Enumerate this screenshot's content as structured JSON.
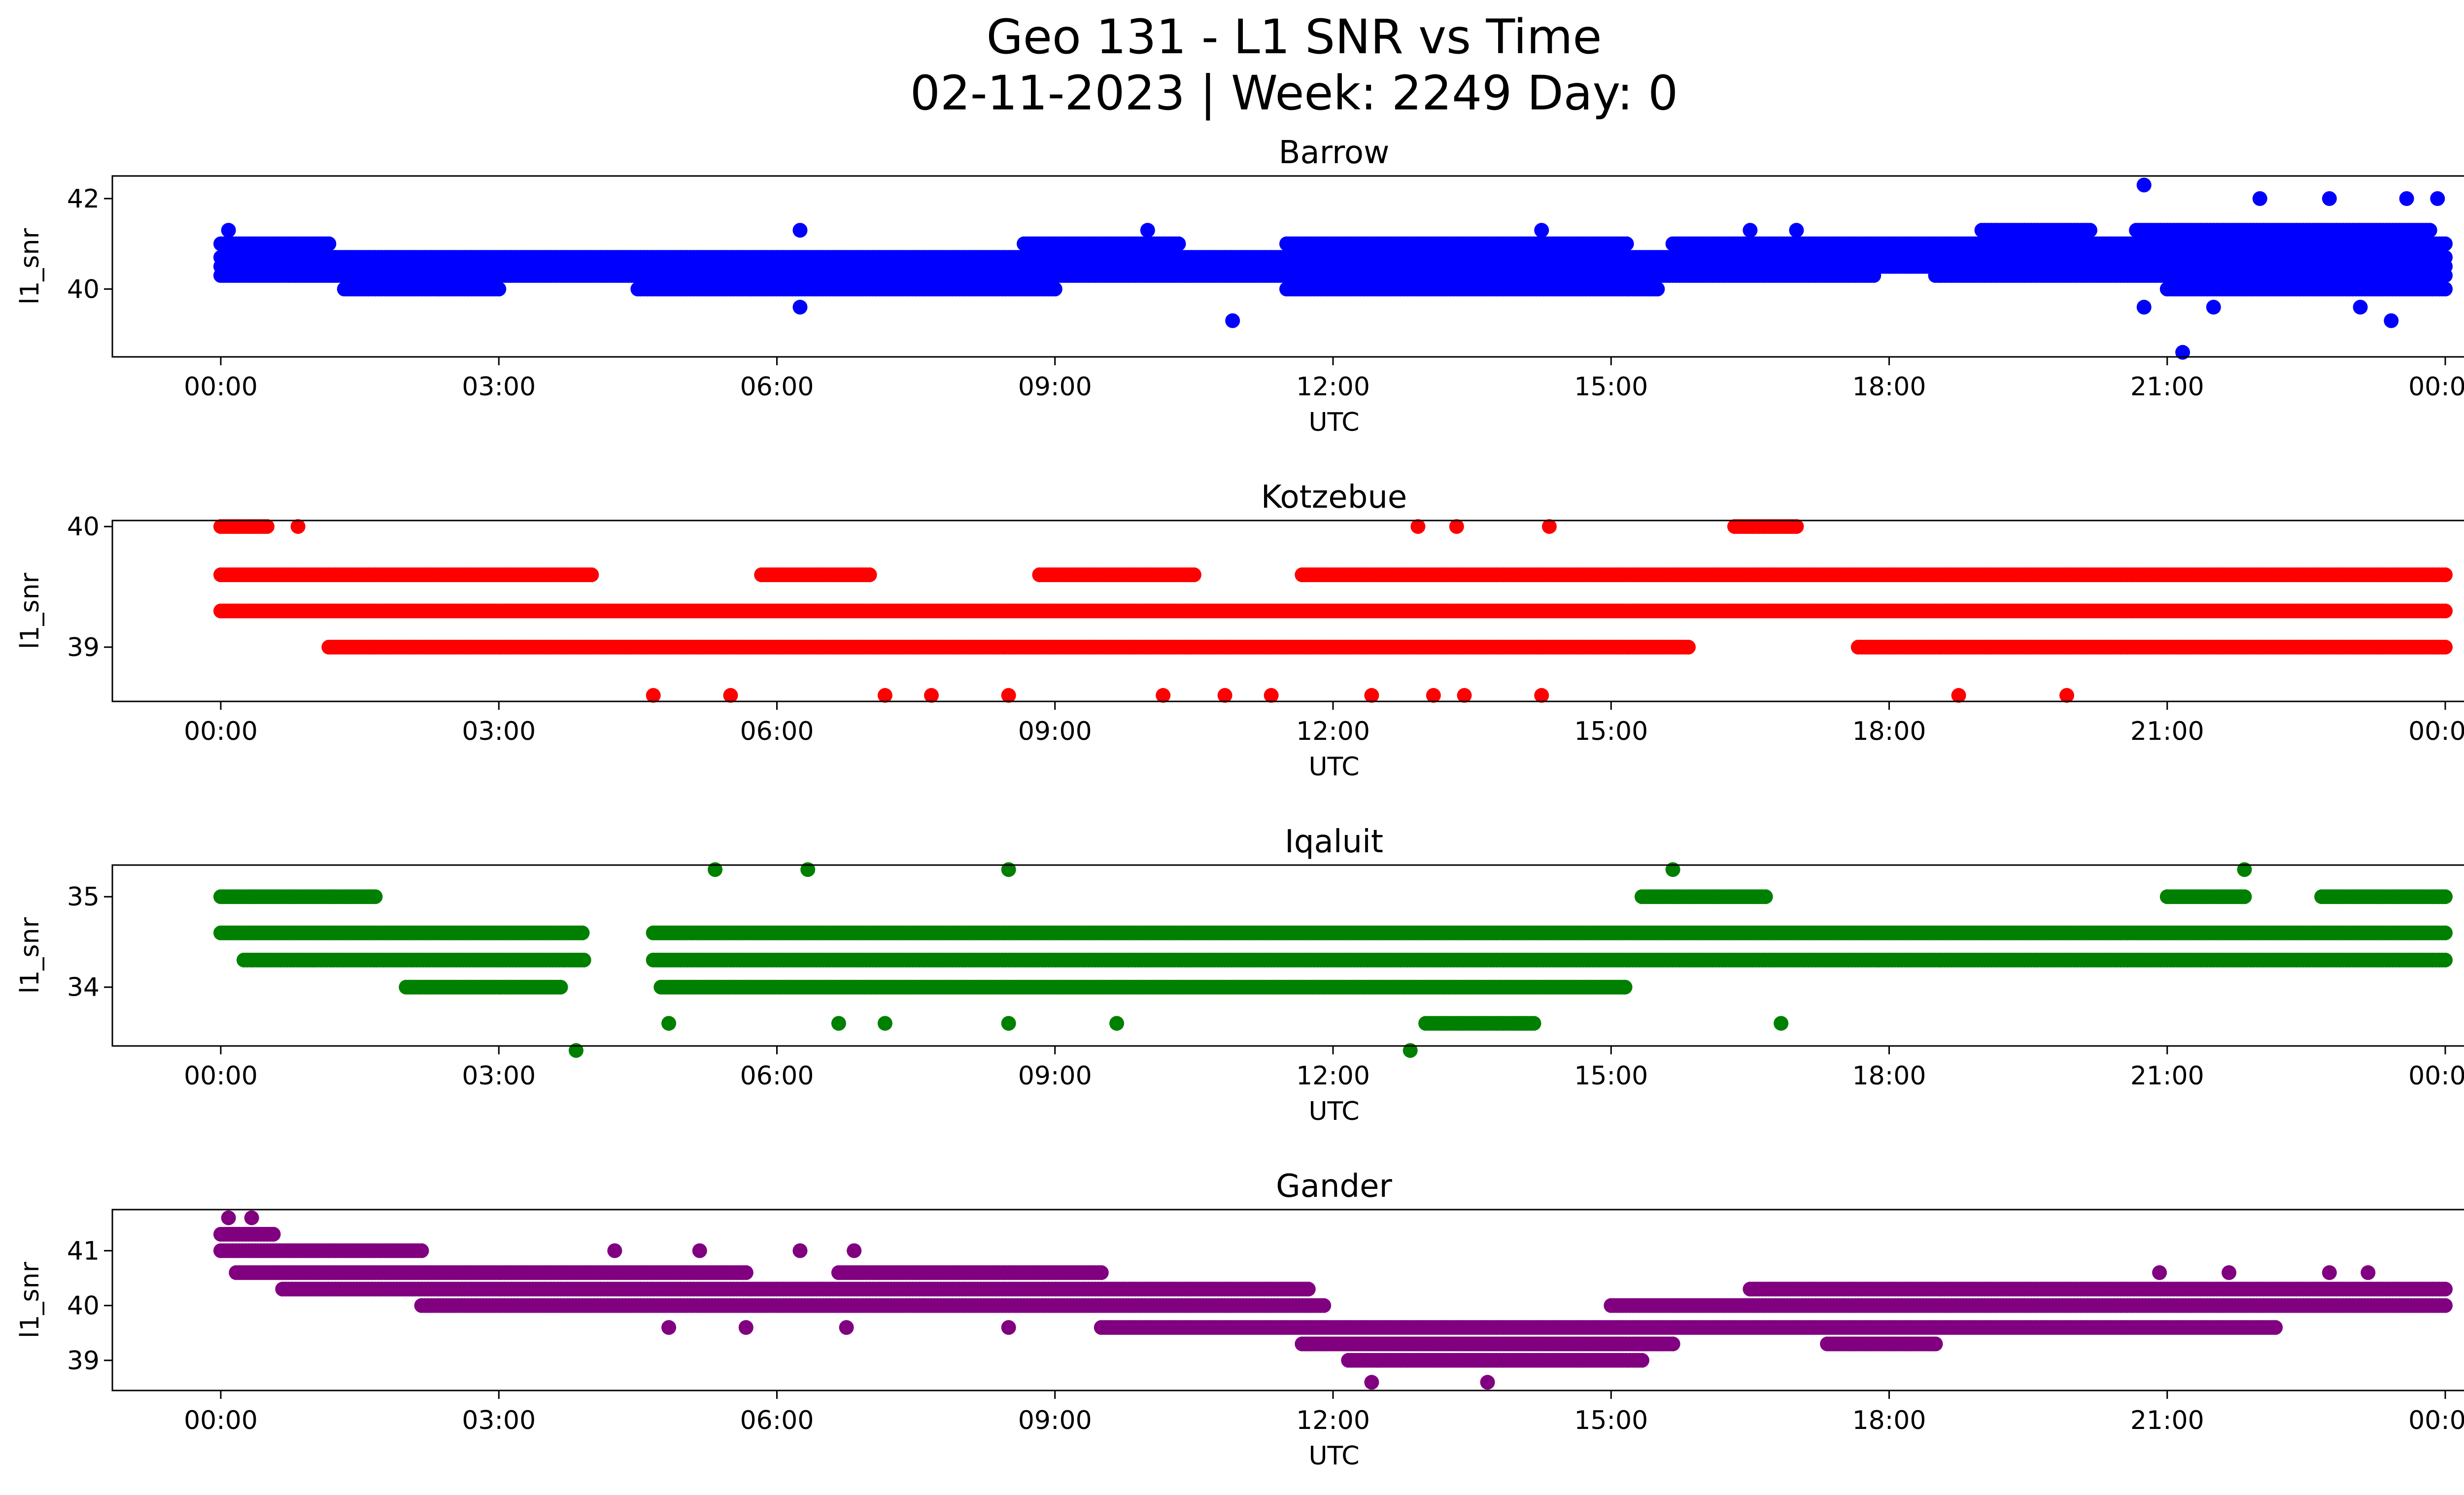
{
  "figure": {
    "title_line1": "Geo 131 - L1 SNR vs Time",
    "title_line2": "02-11-2023 | Week: 2249 Day: 0"
  },
  "chart_data": [
    {
      "type": "scatter",
      "title": "Barrow",
      "xlabel": "UTC",
      "ylabel": "l1_snr",
      "color": "#0000ff",
      "xlim": [
        "00:00",
        "24:00"
      ],
      "ylim": [
        38.5,
        42.5
      ],
      "x_ticks": [
        "00:00",
        "03:00",
        "06:00",
        "09:00",
        "12:00",
        "15:00",
        "18:00",
        "21:00",
        "00:00"
      ],
      "y_ticks": [
        "40",
        "42"
      ],
      "bands": [
        {
          "y": 40.7,
          "x_ranges": [
            [
              "00:00",
              "24:00"
            ]
          ]
        },
        {
          "y": 40.5,
          "x_ranges": [
            [
              "00:00",
              "24:00"
            ]
          ]
        },
        {
          "y": 40.3,
          "x_ranges": [
            [
              "00:00",
              "17:50"
            ],
            [
              "18:30",
              "24:00"
            ]
          ]
        },
        {
          "y": 40.0,
          "x_ranges": [
            [
              "01:20",
              "03:00"
            ],
            [
              "04:30",
              "09:00"
            ],
            [
              "11:30",
              "15:30"
            ],
            [
              "21:00",
              "24:00"
            ]
          ]
        },
        {
          "y": 41.0,
          "x_ranges": [
            [
              "00:00",
              "01:10"
            ],
            [
              "08:40",
              "10:20"
            ],
            [
              "11:30",
              "15:10"
            ],
            [
              "15:40",
              "24:00"
            ]
          ]
        },
        {
          "y": 41.3,
          "x_ranges": [
            [
              "19:00",
              "20:10"
            ],
            [
              "20:40",
              "23:50"
            ]
          ]
        }
      ],
      "outliers": [
        {
          "x": "00:05",
          "y": 41.3
        },
        {
          "x": "06:15",
          "y": 41.3
        },
        {
          "x": "06:15",
          "y": 39.6
        },
        {
          "x": "10:00",
          "y": 41.3
        },
        {
          "x": "10:55",
          "y": 39.3
        },
        {
          "x": "14:15",
          "y": 41.3
        },
        {
          "x": "16:30",
          "y": 41.3
        },
        {
          "x": "17:00",
          "y": 41.3
        },
        {
          "x": "20:45",
          "y": 42.3
        },
        {
          "x": "21:10",
          "y": 38.6
        },
        {
          "x": "20:45",
          "y": 39.6
        },
        {
          "x": "21:30",
          "y": 39.6
        },
        {
          "x": "22:00",
          "y": 42.0
        },
        {
          "x": "22:45",
          "y": 42.0
        },
        {
          "x": "23:05",
          "y": 39.6
        },
        {
          "x": "23:25",
          "y": 39.3
        },
        {
          "x": "23:35",
          "y": 42.0
        },
        {
          "x": "23:55",
          "y": 42.0
        }
      ]
    },
    {
      "type": "scatter",
      "title": "Kotzebue",
      "xlabel": "UTC",
      "ylabel": "l1_snr",
      "color": "#ff0000",
      "xlim": [
        "00:00",
        "24:00"
      ],
      "ylim": [
        38.55,
        40.05
      ],
      "x_ticks": [
        "00:00",
        "03:00",
        "06:00",
        "09:00",
        "12:00",
        "15:00",
        "18:00",
        "21:00",
        "00:00"
      ],
      "y_ticks": [
        "39",
        "40"
      ],
      "bands": [
        {
          "y": 39.6,
          "x_ranges": [
            [
              "00:00",
              "04:00"
            ],
            [
              "05:50",
              "07:00"
            ],
            [
              "08:50",
              "10:30"
            ],
            [
              "11:40",
              "24:00"
            ]
          ]
        },
        {
          "y": 39.3,
          "x_ranges": [
            [
              "00:00",
              "24:00"
            ]
          ]
        },
        {
          "y": 39.0,
          "x_ranges": [
            [
              "01:10",
              "15:50"
            ],
            [
              "17:40",
              "24:00"
            ]
          ]
        },
        {
          "y": 40.0,
          "x_ranges": [
            [
              "00:00",
              "00:30"
            ],
            [
              "16:20",
              "17:00"
            ]
          ]
        }
      ],
      "outliers": [
        {
          "x": "00:50",
          "y": 40.0
        },
        {
          "x": "12:55",
          "y": 40.0
        },
        {
          "x": "13:20",
          "y": 40.0
        },
        {
          "x": "14:20",
          "y": 40.0
        },
        {
          "x": "04:40",
          "y": 38.6
        },
        {
          "x": "05:30",
          "y": 38.6
        },
        {
          "x": "07:10",
          "y": 38.6
        },
        {
          "x": "07:40",
          "y": 38.6
        },
        {
          "x": "08:30",
          "y": 38.6
        },
        {
          "x": "10:10",
          "y": 38.6
        },
        {
          "x": "10:50",
          "y": 38.6
        },
        {
          "x": "11:20",
          "y": 38.6
        },
        {
          "x": "12:25",
          "y": 38.6
        },
        {
          "x": "13:05",
          "y": 38.6
        },
        {
          "x": "13:25",
          "y": 38.6
        },
        {
          "x": "14:15",
          "y": 38.6
        },
        {
          "x": "18:45",
          "y": 38.6
        },
        {
          "x": "19:55",
          "y": 38.6
        }
      ]
    },
    {
      "type": "scatter",
      "title": "Iqaluit",
      "xlabel": "UTC",
      "ylabel": "l1_snr",
      "color": "#008000",
      "xlim": [
        "00:00",
        "24:00"
      ],
      "ylim": [
        33.35,
        35.35
      ],
      "x_ticks": [
        "00:00",
        "03:00",
        "06:00",
        "09:00",
        "12:00",
        "15:00",
        "18:00",
        "21:00",
        "00:00"
      ],
      "y_ticks": [
        "34",
        "35"
      ],
      "bands": [
        {
          "y": 34.6,
          "x_ranges": [
            [
              "00:00",
              "03:55"
            ],
            [
              "04:40",
              "24:00"
            ]
          ]
        },
        {
          "y": 34.3,
          "x_ranges": [
            [
              "00:15",
              "03:55"
            ],
            [
              "04:40",
              "24:00"
            ]
          ]
        },
        {
          "y": 34.0,
          "x_ranges": [
            [
              "02:00",
              "03:40"
            ],
            [
              "04:45",
              "15:10"
            ]
          ]
        },
        {
          "y": 35.0,
          "x_ranges": [
            [
              "00:00",
              "01:40"
            ],
            [
              "15:20",
              "16:40"
            ],
            [
              "21:00",
              "21:50"
            ],
            [
              "22:40",
              "24:00"
            ]
          ]
        },
        {
          "y": 33.6,
          "x_ranges": [
            [
              "13:00",
              "14:10"
            ]
          ]
        }
      ],
      "outliers": [
        {
          "x": "03:50",
          "y": 33.3
        },
        {
          "x": "12:50",
          "y": 33.3
        },
        {
          "x": "05:20",
          "y": 35.3
        },
        {
          "x": "06:20",
          "y": 35.3
        },
        {
          "x": "08:30",
          "y": 35.3
        },
        {
          "x": "15:40",
          "y": 35.3
        },
        {
          "x": "21:50",
          "y": 35.3
        },
        {
          "x": "04:50",
          "y": 33.6
        },
        {
          "x": "06:40",
          "y": 33.6
        },
        {
          "x": "07:10",
          "y": 33.6
        },
        {
          "x": "08:30",
          "y": 33.6
        },
        {
          "x": "09:40",
          "y": 33.6
        },
        {
          "x": "16:50",
          "y": 33.6
        }
      ]
    },
    {
      "type": "scatter",
      "title": "Gander",
      "xlabel": "UTC",
      "ylabel": "l1_snr",
      "color": "#800080",
      "xlim": [
        "00:00",
        "24:00"
      ],
      "ylim": [
        38.45,
        41.75
      ],
      "x_ticks": [
        "00:00",
        "03:00",
        "06:00",
        "09:00",
        "12:00",
        "15:00",
        "18:00",
        "21:00",
        "00:00"
      ],
      "y_ticks": [
        "39",
        "40",
        "41"
      ],
      "bands": [
        {
          "y": 41.3,
          "x_ranges": [
            [
              "00:00",
              "00:35"
            ]
          ]
        },
        {
          "y": 41.0,
          "x_ranges": [
            [
              "00:00",
              "02:10"
            ]
          ]
        },
        {
          "y": 40.6,
          "x_ranges": [
            [
              "00:10",
              "05:40"
            ],
            [
              "06:40",
              "09:30"
            ]
          ]
        },
        {
          "y": 40.3,
          "x_ranges": [
            [
              "00:40",
              "11:45"
            ],
            [
              "16:30",
              "24:00"
            ]
          ]
        },
        {
          "y": 40.0,
          "x_ranges": [
            [
              "02:10",
              "11:55"
            ],
            [
              "15:00",
              "24:00"
            ]
          ]
        },
        {
          "y": 39.6,
          "x_ranges": [
            [
              "09:30",
              "22:10"
            ]
          ]
        },
        {
          "y": 39.3,
          "x_ranges": [
            [
              "11:40",
              "15:40"
            ],
            [
              "17:20",
              "18:30"
            ]
          ]
        },
        {
          "y": 39.0,
          "x_ranges": [
            [
              "12:10",
              "15:20"
            ]
          ]
        }
      ],
      "outliers": [
        {
          "x": "00:05",
          "y": 41.6
        },
        {
          "x": "00:20",
          "y": 41.6
        },
        {
          "x": "12:25",
          "y": 38.6
        },
        {
          "x": "13:40",
          "y": 38.6
        },
        {
          "x": "04:15",
          "y": 41.0
        },
        {
          "x": "05:10",
          "y": 41.0
        },
        {
          "x": "06:15",
          "y": 41.0
        },
        {
          "x": "06:50",
          "y": 41.0
        },
        {
          "x": "20:55",
          "y": 40.6
        },
        {
          "x": "21:40",
          "y": 40.6
        },
        {
          "x": "22:45",
          "y": 40.6
        },
        {
          "x": "23:10",
          "y": 40.6
        },
        {
          "x": "04:50",
          "y": 39.6
        },
        {
          "x": "05:40",
          "y": 39.6
        },
        {
          "x": "06:45",
          "y": 39.6
        },
        {
          "x": "08:30",
          "y": 39.6
        }
      ]
    }
  ]
}
